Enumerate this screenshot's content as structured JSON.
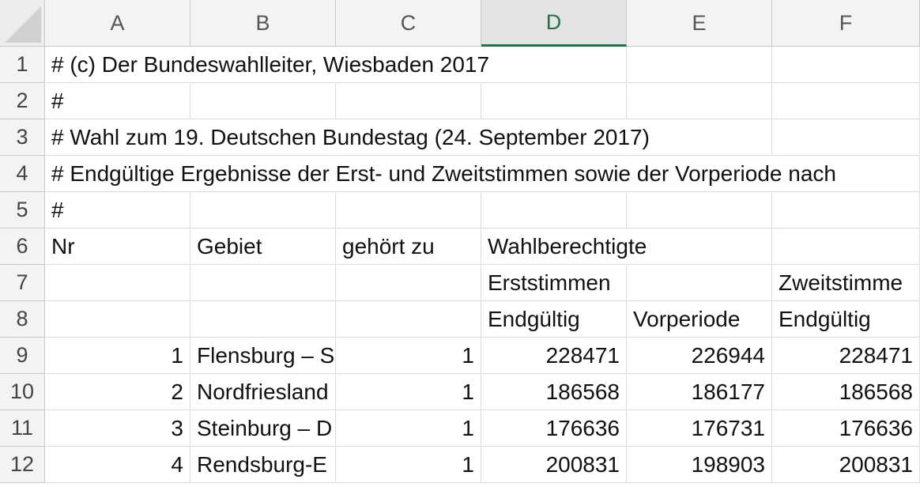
{
  "columns": [
    "A",
    "B",
    "C",
    "D",
    "E",
    "F"
  ],
  "active_column": "D",
  "row_numbers": [
    "1",
    "2",
    "3",
    "4",
    "5",
    "6",
    "7",
    "8",
    "9",
    "10",
    "11",
    "12"
  ],
  "rows": [
    [
      "# (c) Der Bundeswahlleiter, Wiesbaden 2017",
      "",
      "",
      "",
      "",
      ""
    ],
    [
      "#",
      "",
      "",
      "",
      "",
      ""
    ],
    [
      "# Wahl zum 19. Deutschen Bundestag (24. September 2017)",
      "",
      "",
      "",
      "",
      ""
    ],
    [
      "# Endgültige Ergebnisse der Erst- und Zweitstimmen sowie der Vorperiode nach",
      "",
      "",
      "",
      "",
      ""
    ],
    [
      "#",
      "",
      "",
      "",
      "",
      ""
    ],
    [
      "Nr",
      "Gebiet",
      "gehört zu",
      "Wahlberechtigte",
      "",
      ""
    ],
    [
      "",
      "",
      "",
      "Erststimmen",
      "",
      "Zweitstimme"
    ],
    [
      "",
      "",
      "",
      "Endgültig",
      "Vorperiode",
      "Endgültig"
    ],
    [
      "1",
      "Flensburg – S",
      "1",
      "228471",
      "226944",
      "228471"
    ],
    [
      "2",
      "Nordfriesland",
      "1",
      "186568",
      "186177",
      "186568"
    ],
    [
      "3",
      "Steinburg – D",
      "1",
      "176636",
      "176731",
      "176636"
    ],
    [
      "4",
      "Rendsburg-E",
      "1",
      "200831",
      "198903",
      "200831"
    ]
  ]
}
